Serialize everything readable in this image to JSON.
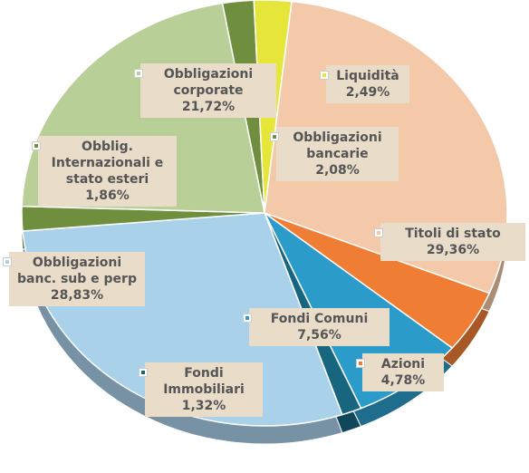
{
  "chart_data": {
    "type": "pie",
    "categories": [
      "Obbligazioni bancarie",
      "Liquidità",
      "Titoli di stato",
      "Azioni",
      "Fondi Comuni",
      "Fondi Immobiliari",
      "Obbligazioni banc. sub e perp",
      "Obblig. Internazionali e stato esteri",
      "Obbligazioni corporate"
    ],
    "values": [
      2.08,
      2.49,
      29.36,
      4.78,
      7.56,
      1.32,
      28.83,
      1.86,
      21.72
    ],
    "value_labels": [
      "2,08%",
      "2,49%",
      "29,36%",
      "4,78%",
      "7,56%",
      "1,32%",
      "28,83%",
      "1,86%",
      "21,72%"
    ],
    "colors": [
      "#6f8f3f",
      "#e6e53a",
      "#f3c9aa",
      "#ef7d34",
      "#2b9bc9",
      "#17657f",
      "#a9d1ea",
      "#6f8f3f",
      "#b9cf98"
    ]
  }
}
